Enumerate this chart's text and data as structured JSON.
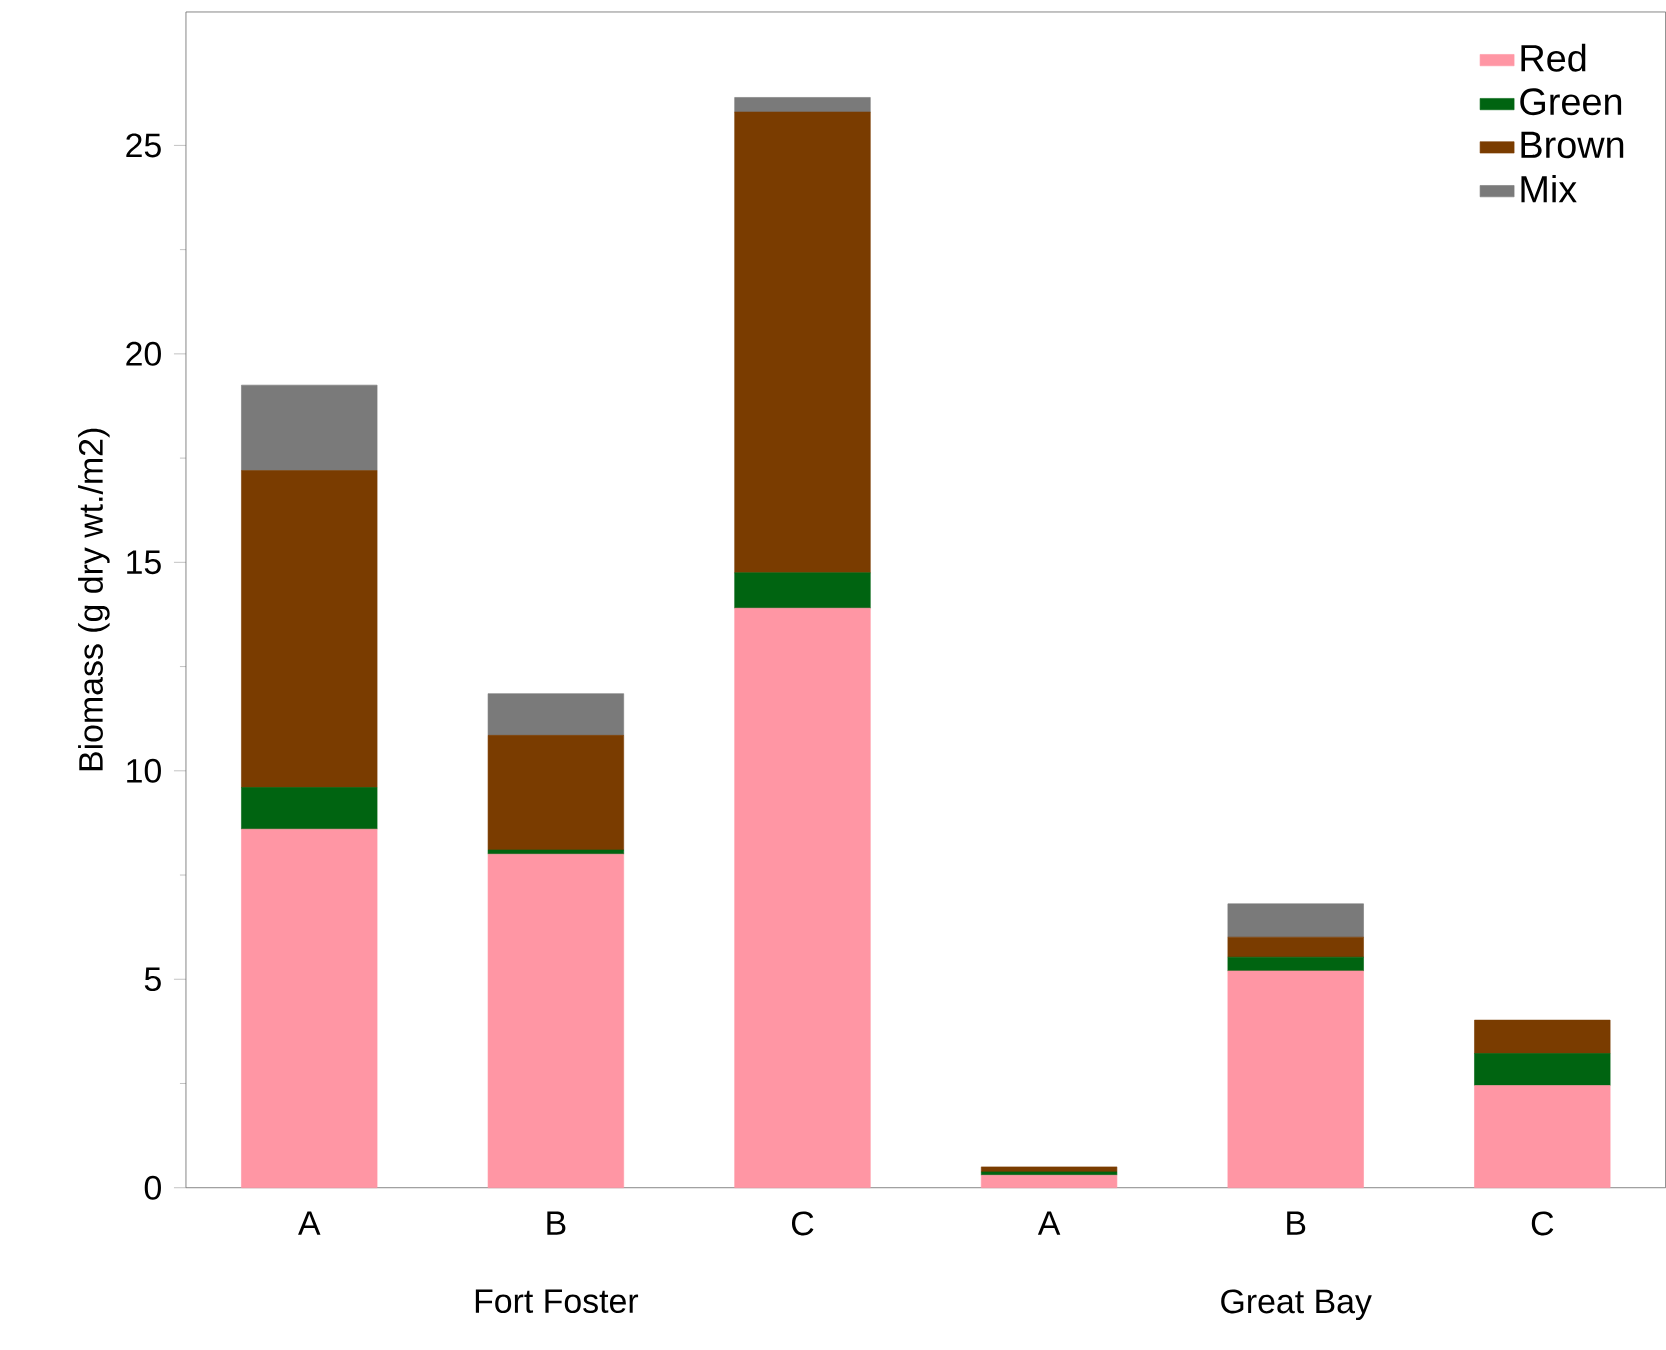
{
  "chart_data": {
    "type": "bar",
    "stacked": true,
    "ylabel": "Biomass (g dry wt./m2)",
    "categories": [
      "A",
      "B",
      "C",
      "A",
      "B",
      "C"
    ],
    "series": [
      {
        "name": "Red",
        "color": "#ff96a4",
        "values": [
          8.6,
          8.0,
          13.9,
          0.3,
          5.2,
          2.45
        ]
      },
      {
        "name": "Green",
        "color": "#006411",
        "values": [
          1.0,
          0.1,
          0.85,
          0.08,
          0.33,
          0.77
        ]
      },
      {
        "name": "Brown",
        "color": "#7a3c00",
        "values": [
          7.6,
          2.75,
          11.05,
          0.12,
          0.48,
          0.8
        ]
      },
      {
        "name": "Mix",
        "color": "#7a7a7a",
        "values": [
          2.05,
          1.0,
          0.35,
          0,
          0.8,
          0
        ]
      }
    ],
    "ylim": [
      0,
      28.2
    ],
    "yticks": [
      0,
      5,
      10,
      15,
      20,
      25
    ],
    "annotations": [
      "Fort Foster",
      "Great Bay"
    ],
    "legend": "top right",
    "grid": false
  }
}
